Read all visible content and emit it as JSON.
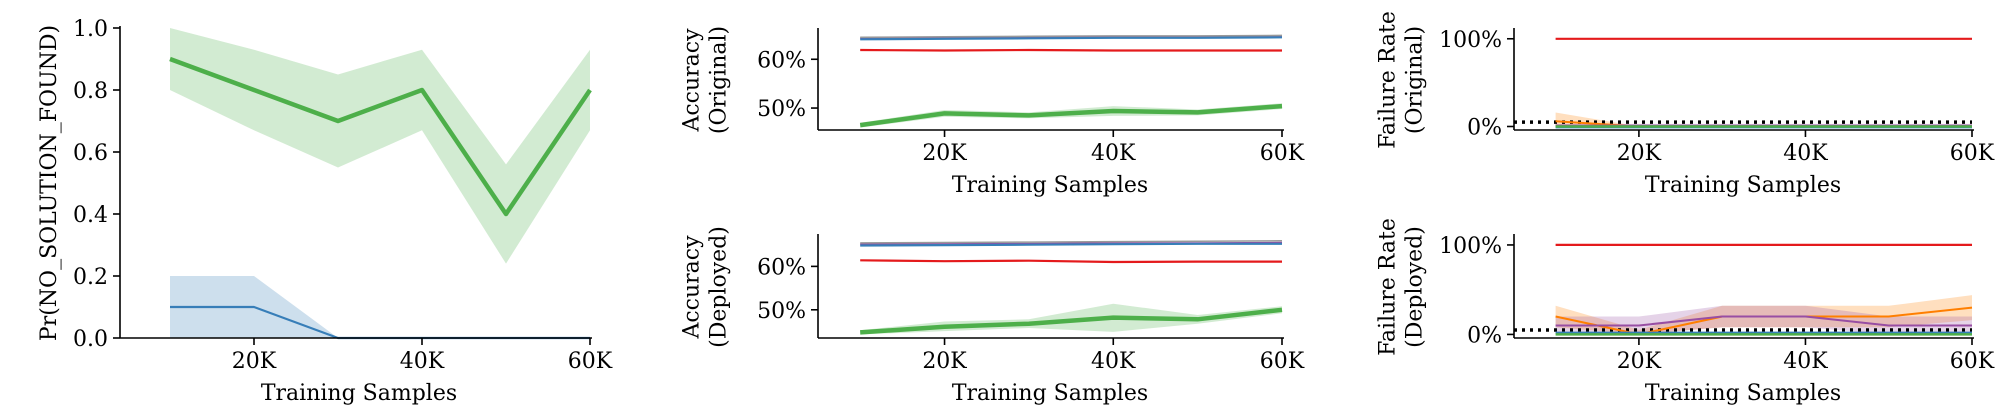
{
  "colors": {
    "green": "#4daf4a",
    "blue": "#377eb8",
    "red": "#e41a1c",
    "purple": "#984ea3",
    "orange": "#ff7f00",
    "gray": "#999999",
    "reference": "#000000"
  },
  "chart_data": [
    {
      "type": "line",
      "xlabel": "Training Samples",
      "ylabel": "Pr(NO_SOLUTION_FOUND)",
      "x_ticks": [
        20000,
        40000,
        60000
      ],
      "x_tick_labels": [
        "20K",
        "40K",
        "60K"
      ],
      "y_ticks": [
        0.0,
        0.2,
        0.4,
        0.6,
        0.8,
        1.0
      ],
      "y_tick_labels": [
        "0.0",
        "0.2",
        "0.4",
        "0.6",
        "0.8",
        "1.0"
      ],
      "xlim": [
        5000,
        60000
      ],
      "ylim": [
        0,
        1
      ],
      "grid": false,
      "series": [
        {
          "color": "green",
          "width": 4.5,
          "x": [
            10000,
            20000,
            30000,
            40000,
            50000,
            60000
          ],
          "y": [
            0.9,
            0.8,
            0.7,
            0.8,
            0.4,
            0.8
          ],
          "lower": [
            0.8,
            0.67,
            0.55,
            0.67,
            0.24,
            0.67
          ],
          "upper": [
            1.0,
            0.93,
            0.85,
            0.93,
            0.56,
            0.93
          ]
        },
        {
          "color": "blue",
          "width": 2.2,
          "x": [
            10000,
            20000,
            30000,
            40000,
            50000,
            60000
          ],
          "y": [
            0.1,
            0.1,
            0.0,
            0.0,
            0.0,
            0.0
          ],
          "lower": [
            0.0,
            0.0,
            0.0,
            0.0,
            0.0,
            0.0
          ],
          "upper": [
            0.2,
            0.2,
            0.0,
            0.0,
            0.0,
            0.0
          ]
        }
      ],
      "reference_line": null
    },
    {
      "type": "line",
      "xlabel": "Training Samples",
      "ylabel_lines": [
        "Accuracy",
        "(Original)"
      ],
      "x_ticks": [
        20000,
        40000,
        60000
      ],
      "x_tick_labels": [
        "20K",
        "40K",
        "60K"
      ],
      "y_ticks": [
        50,
        60
      ],
      "y_tick_labels": [
        "50%",
        "60%"
      ],
      "xlim": [
        5000,
        60000
      ],
      "ylim": [
        45.5,
        66
      ],
      "grid": false,
      "series": [
        {
          "color": "red",
          "width": 2.2,
          "x": [
            10000,
            20000,
            30000,
            40000,
            50000,
            60000
          ],
          "y": [
            61.9,
            61.8,
            61.9,
            61.8,
            61.8,
            61.8
          ]
        },
        {
          "color": "purple",
          "width": 2.2,
          "x": [
            10000,
            20000,
            30000,
            40000,
            50000,
            60000
          ],
          "y": [
            64.3,
            64.4,
            64.5,
            64.6,
            64.6,
            64.7
          ]
        },
        {
          "color": "blue",
          "width": 2.2,
          "x": [
            10000,
            20000,
            30000,
            40000,
            50000,
            60000
          ],
          "y": [
            64.1,
            64.2,
            64.3,
            64.4,
            64.4,
            64.5
          ]
        },
        {
          "color": "gray",
          "width": 1.5,
          "x": [
            10000,
            20000,
            30000,
            40000,
            50000,
            60000
          ],
          "y": [
            64.5,
            64.6,
            64.7,
            64.8,
            64.8,
            64.9
          ]
        },
        {
          "color": "green",
          "width": 4.5,
          "x": [
            10000,
            20000,
            30000,
            40000,
            50000,
            60000
          ],
          "y": [
            46.5,
            48.9,
            48.5,
            49.4,
            49.1,
            50.4
          ],
          "lower": [
            46.0,
            48.2,
            47.9,
            48.4,
            48.5,
            49.8
          ],
          "upper": [
            47.0,
            49.6,
            49.1,
            50.4,
            49.7,
            51.0
          ]
        }
      ],
      "reference_line": null
    },
    {
      "type": "line",
      "xlabel": "Training Samples",
      "ylabel_lines": [
        "Failure Rate",
        "(Original)"
      ],
      "x_ticks": [
        20000,
        40000,
        60000
      ],
      "x_tick_labels": [
        "20K",
        "40K",
        "60K"
      ],
      "y_ticks": [
        0,
        100
      ],
      "y_tick_labels": [
        "0%",
        "100%"
      ],
      "xlim": [
        5000,
        60000
      ],
      "ylim": [
        -4,
        110
      ],
      "grid": false,
      "series": [
        {
          "color": "red",
          "width": 2.2,
          "x": [
            10000,
            20000,
            30000,
            40000,
            50000,
            60000
          ],
          "y": [
            100,
            100,
            100,
            100,
            100,
            100
          ]
        },
        {
          "color": "orange",
          "width": 2.0,
          "x": [
            10000,
            20000,
            30000,
            40000,
            50000,
            60000
          ],
          "y": [
            6,
            0,
            0,
            0,
            0,
            0
          ],
          "lower": [
            0,
            0,
            0,
            0,
            0,
            0
          ],
          "upper": [
            16,
            0,
            0,
            0,
            0,
            0
          ]
        },
        {
          "color": "purple",
          "width": 2.0,
          "x": [
            10000,
            20000,
            30000,
            40000,
            50000,
            60000
          ],
          "y": [
            1,
            1,
            1,
            1,
            1,
            1
          ],
          "lower": [
            0,
            0,
            0,
            0,
            0,
            0
          ],
          "upper": [
            3,
            3,
            3,
            3,
            3,
            3
          ]
        },
        {
          "color": "blue",
          "width": 2.0,
          "x": [
            10000,
            20000,
            30000,
            40000,
            50000,
            60000
          ],
          "y": [
            -1,
            -1,
            -1,
            -1,
            -1,
            -1
          ]
        },
        {
          "color": "green",
          "width": 2.5,
          "x": [
            10000,
            20000,
            30000,
            40000,
            50000,
            60000
          ],
          "y": [
            0,
            0,
            0,
            0,
            0,
            0
          ]
        }
      ],
      "reference_line": {
        "y": 5,
        "style": "dotted",
        "color": "reference"
      }
    },
    {
      "type": "line",
      "xlabel": "Training Samples",
      "ylabel_lines": [
        "Accuracy",
        "(Deployed)"
      ],
      "x_ticks": [
        20000,
        40000,
        60000
      ],
      "x_tick_labels": [
        "20K",
        "40K",
        "60K"
      ],
      "y_ticks": [
        50,
        60
      ],
      "y_tick_labels": [
        "50%",
        "60%"
      ],
      "xlim": [
        5000,
        60000
      ],
      "ylim": [
        43.5,
        67
      ],
      "grid": false,
      "series": [
        {
          "color": "red",
          "width": 2.2,
          "x": [
            10000,
            20000,
            30000,
            40000,
            50000,
            60000
          ],
          "y": [
            61.4,
            61.2,
            61.3,
            61.0,
            61.1,
            61.1
          ]
        },
        {
          "color": "purple",
          "width": 2.2,
          "x": [
            10000,
            20000,
            30000,
            40000,
            50000,
            60000
          ],
          "y": [
            65.1,
            65.1,
            65.2,
            65.3,
            65.3,
            65.4
          ]
        },
        {
          "color": "blue",
          "width": 2.2,
          "x": [
            10000,
            20000,
            30000,
            40000,
            50000,
            60000
          ],
          "y": [
            64.8,
            64.9,
            65.0,
            65.1,
            65.2,
            65.2
          ]
        },
        {
          "color": "gray",
          "width": 1.5,
          "x": [
            10000,
            20000,
            30000,
            40000,
            50000,
            60000
          ],
          "y": [
            65.4,
            65.5,
            65.6,
            65.7,
            65.8,
            65.9
          ]
        },
        {
          "color": "green",
          "width": 4.5,
          "x": [
            10000,
            20000,
            30000,
            40000,
            50000,
            60000
          ],
          "y": [
            44.8,
            46.1,
            46.8,
            48.2,
            47.8,
            50.0
          ],
          "lower": [
            44.3,
            45.1,
            45.8,
            44.9,
            46.8,
            49.2
          ],
          "upper": [
            45.3,
            47.3,
            47.8,
            51.4,
            48.8,
            50.8
          ]
        }
      ],
      "reference_line": null
    },
    {
      "type": "line",
      "xlabel": "Training Samples",
      "ylabel_lines": [
        "Failure Rate",
        "(Deployed)"
      ],
      "x_ticks": [
        20000,
        40000,
        60000
      ],
      "x_tick_labels": [
        "20K",
        "40K",
        "60K"
      ],
      "y_ticks": [
        0,
        100
      ],
      "y_tick_labels": [
        "0%",
        "100%"
      ],
      "xlim": [
        5000,
        60000
      ],
      "ylim": [
        -4,
        110
      ],
      "grid": false,
      "series": [
        {
          "color": "red",
          "width": 2.2,
          "x": [
            10000,
            20000,
            30000,
            40000,
            50000,
            60000
          ],
          "y": [
            100,
            100,
            100,
            100,
            100,
            100
          ]
        },
        {
          "color": "orange",
          "width": 2.0,
          "x": [
            10000,
            20000,
            30000,
            40000,
            50000,
            60000
          ],
          "y": [
            20,
            0,
            20,
            20,
            20,
            30
          ],
          "lower": [
            8,
            0,
            8,
            8,
            8,
            16
          ],
          "upper": [
            32,
            5,
            32,
            32,
            32,
            44
          ]
        },
        {
          "color": "purple",
          "width": 2.0,
          "x": [
            10000,
            20000,
            30000,
            40000,
            50000,
            60000
          ],
          "y": [
            10,
            10,
            20,
            20,
            10,
            10
          ],
          "lower": [
            0,
            0,
            8,
            8,
            0,
            0
          ],
          "upper": [
            20,
            20,
            32,
            32,
            20,
            20
          ]
        },
        {
          "color": "blue",
          "width": 2.0,
          "x": [
            10000,
            20000,
            30000,
            40000,
            50000,
            60000
          ],
          "y": [
            2,
            2,
            2,
            2,
            2,
            2
          ]
        },
        {
          "color": "green",
          "width": 2.5,
          "x": [
            10000,
            20000,
            30000,
            40000,
            50000,
            60000
          ],
          "y": [
            0,
            0,
            0,
            0,
            0,
            0
          ]
        }
      ],
      "reference_line": {
        "y": 5,
        "style": "dotted",
        "color": "reference"
      }
    }
  ]
}
